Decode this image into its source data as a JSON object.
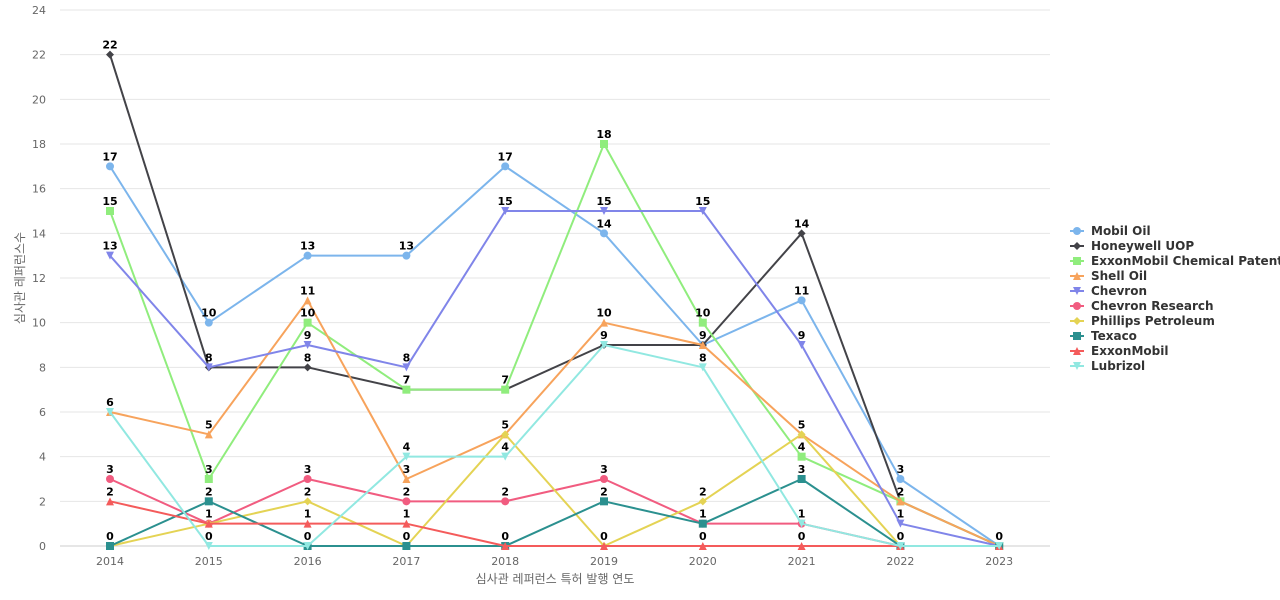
{
  "chart_data": {
    "type": "line",
    "title": "",
    "xlabel": "심사관 레퍼런스 특허 발행 연도",
    "ylabel": "심사관 레퍼런스수",
    "categories": [
      "2014",
      "2015",
      "2016",
      "2017",
      "2018",
      "2019",
      "2020",
      "2021",
      "2022",
      "2023"
    ],
    "ylim": [
      0,
      24
    ],
    "yticks": [
      0,
      2,
      4,
      6,
      8,
      10,
      12,
      14,
      16,
      18,
      20,
      22,
      24
    ],
    "grid": true,
    "legend_position": "right",
    "series": [
      {
        "name": "Mobil Oil",
        "color": "#7cb5ec",
        "marker": "circle",
        "values": [
          17,
          10,
          13,
          13,
          17,
          14,
          9,
          11,
          3,
          0
        ]
      },
      {
        "name": "Honeywell UOP",
        "color": "#434348",
        "marker": "diamond",
        "values": [
          22,
          8,
          8,
          7,
          7,
          9,
          9,
          14,
          2,
          0
        ]
      },
      {
        "name": "ExxonMobil Chemical Patents",
        "color": "#90ed7d",
        "marker": "square",
        "values": [
          15,
          3,
          10,
          7,
          7,
          18,
          10,
          4,
          2,
          0
        ]
      },
      {
        "name": "Shell Oil",
        "color": "#f7a35c",
        "marker": "triangle",
        "values": [
          6,
          5,
          11,
          3,
          5,
          10,
          9,
          5,
          2,
          0
        ]
      },
      {
        "name": "Chevron",
        "color": "#8085e9",
        "marker": "triangle-down",
        "values": [
          13,
          8,
          9,
          8,
          15,
          15,
          15,
          9,
          1,
          0
        ]
      },
      {
        "name": "Chevron Research",
        "color": "#f15c80",
        "marker": "circle",
        "values": [
          3,
          1,
          3,
          2,
          2,
          3,
          1,
          1,
          0,
          0
        ]
      },
      {
        "name": "Phillips Petroleum",
        "color": "#e4d354",
        "marker": "diamond",
        "values": [
          0,
          1,
          2,
          0,
          5,
          0,
          2,
          5,
          0,
          0
        ]
      },
      {
        "name": "Texaco",
        "color": "#2b908f",
        "marker": "square",
        "values": [
          0,
          2,
          0,
          0,
          0,
          2,
          1,
          3,
          0,
          0
        ]
      },
      {
        "name": "ExxonMobil",
        "color": "#f45b5b",
        "marker": "triangle",
        "values": [
          2,
          1,
          1,
          1,
          0,
          0,
          0,
          0,
          0,
          0
        ]
      },
      {
        "name": "Lubrizol",
        "color": "#91e8e1",
        "marker": "triangle-down",
        "values": [
          6,
          0,
          0,
          4,
          4,
          9,
          8,
          1,
          0,
          0
        ]
      }
    ],
    "data_labels": [
      {
        "x": "2014",
        "values": [
          22,
          17,
          15,
          13,
          6,
          3,
          2,
          0
        ]
      },
      {
        "x": "2015",
        "values": [
          10,
          8,
          5,
          3,
          2,
          1,
          0
        ]
      },
      {
        "x": "2016",
        "values": [
          13,
          11,
          10,
          9,
          8,
          3,
          2,
          1,
          0
        ]
      },
      {
        "x": "2017",
        "values": [
          13,
          8,
          7,
          4,
          3,
          2,
          1,
          0
        ]
      },
      {
        "x": "2018",
        "values": [
          17,
          15,
          7,
          5,
          4,
          2,
          0
        ]
      },
      {
        "x": "2019",
        "values": [
          18,
          15,
          14,
          10,
          9,
          3,
          2,
          0
        ]
      },
      {
        "x": "2020",
        "values": [
          15,
          10,
          9,
          8,
          2,
          1,
          0
        ]
      },
      {
        "x": "2021",
        "values": [
          14,
          11,
          9,
          5,
          4,
          3,
          1,
          0
        ]
      },
      {
        "x": "2022",
        "values": [
          3,
          2,
          1,
          0
        ]
      },
      {
        "x": "2023",
        "values": [
          0
        ]
      }
    ]
  }
}
